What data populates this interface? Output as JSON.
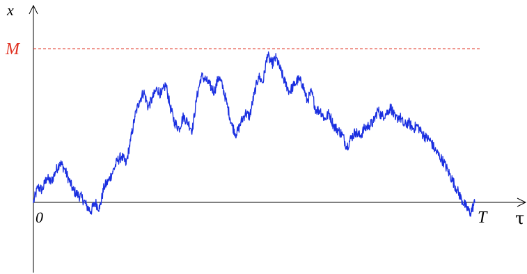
{
  "colors": {
    "path": "#1a2fe0",
    "max_line": "#e03020",
    "max_label": "#e03020",
    "axes": "#000000",
    "text": "#000000"
  },
  "labels": {
    "y_axis": "x",
    "x_axis": "τ",
    "max": "M",
    "origin": "0",
    "end": "T"
  },
  "chart_data": {
    "type": "line",
    "title": "",
    "xlabel": "τ",
    "ylabel": "x",
    "xlim": [
      0,
      1.1
    ],
    "ylim": [
      -0.45,
      1.25
    ],
    "grid": false,
    "legend": "none",
    "max_value": 1.0,
    "annotations": [
      "M",
      "0",
      "T"
    ],
    "series": [
      {
        "x": [
          0.0,
          0.01,
          0.02,
          0.03,
          0.04,
          0.05,
          0.06,
          0.07,
          0.08,
          0.09,
          0.1,
          0.11,
          0.12,
          0.13,
          0.14,
          0.15,
          0.16,
          0.17,
          0.18,
          0.19,
          0.2,
          0.21,
          0.22,
          0.23,
          0.24,
          0.25,
          0.26,
          0.27,
          0.28,
          0.29,
          0.3,
          0.31,
          0.32,
          0.33,
          0.34,
          0.35,
          0.36,
          0.37,
          0.38,
          0.39,
          0.4,
          0.41,
          0.42,
          0.43,
          0.44,
          0.45,
          0.46,
          0.47,
          0.48,
          0.49,
          0.5,
          0.51,
          0.52,
          0.53,
          0.54,
          0.55,
          0.56,
          0.57,
          0.58,
          0.59,
          0.6,
          0.61,
          0.62,
          0.63,
          0.64,
          0.65,
          0.66,
          0.67,
          0.68,
          0.69,
          0.7,
          0.71,
          0.72,
          0.73,
          0.74,
          0.75,
          0.76,
          0.77,
          0.78,
          0.79,
          0.8,
          0.81,
          0.82,
          0.83,
          0.84,
          0.85,
          0.86,
          0.87,
          0.88,
          0.89,
          0.9,
          0.91,
          0.92,
          0.93,
          0.94,
          0.95,
          0.96,
          0.97,
          0.98,
          0.99,
          1.0
        ],
        "values": [
          0.0,
          0.1,
          0.08,
          0.16,
          0.13,
          0.2,
          0.26,
          0.22,
          0.15,
          0.08,
          0.05,
          0.03,
          -0.02,
          -0.06,
          0.0,
          -0.04,
          0.1,
          0.14,
          0.2,
          0.27,
          0.3,
          0.25,
          0.4,
          0.56,
          0.66,
          0.72,
          0.62,
          0.68,
          0.74,
          0.7,
          0.77,
          0.62,
          0.52,
          0.48,
          0.56,
          0.52,
          0.47,
          0.68,
          0.82,
          0.8,
          0.76,
          0.72,
          0.82,
          0.74,
          0.62,
          0.5,
          0.44,
          0.52,
          0.58,
          0.56,
          0.7,
          0.82,
          0.78,
          0.96,
          0.9,
          0.94,
          0.86,
          0.78,
          0.72,
          0.76,
          0.8,
          0.77,
          0.66,
          0.72,
          0.6,
          0.6,
          0.54,
          0.58,
          0.5,
          0.47,
          0.44,
          0.36,
          0.42,
          0.46,
          0.43,
          0.48,
          0.5,
          0.52,
          0.6,
          0.56,
          0.58,
          0.62,
          0.54,
          0.56,
          0.5,
          0.52,
          0.48,
          0.5,
          0.45,
          0.42,
          0.4,
          0.34,
          0.3,
          0.26,
          0.2,
          0.14,
          0.08,
          0.02,
          -0.03,
          -0.07,
          0.0
        ]
      }
    ]
  }
}
